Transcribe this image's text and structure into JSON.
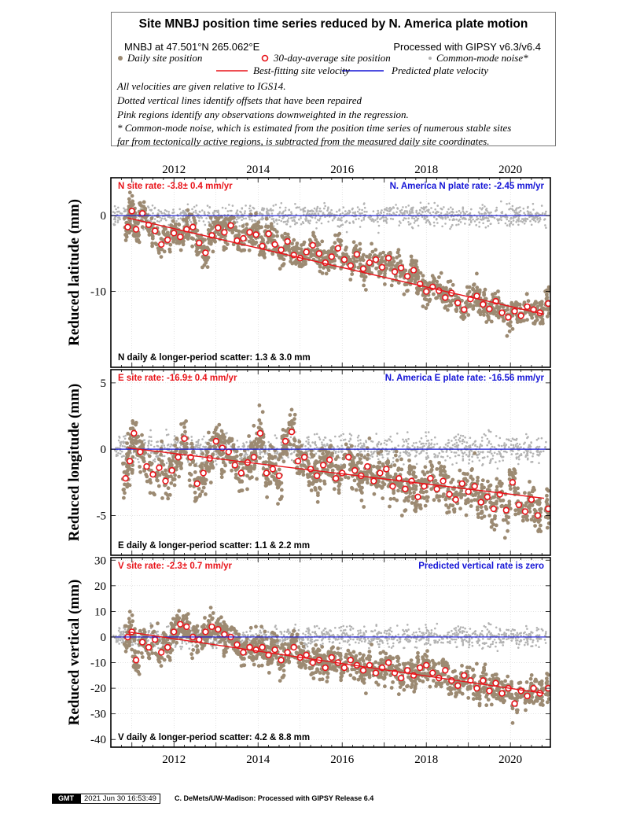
{
  "legend": {
    "title": "Site MNBJ position time series reduced by N. America plate motion",
    "site_info": "MNBJ at 47.501°N 265.062°E",
    "processed": "Processed with GIPSY v6.3/v6.4",
    "daily_label": "Daily site position",
    "avg_label": "30-day-average site position",
    "cm_label": "Common-mode noise*",
    "best_fit_label": "Best-fitting site velocity",
    "plate_label": "Predicted plate velocity",
    "notes": [
      "All velocities are given relative to IGS14.",
      "Dotted vertical lines identify offsets that have been repaired",
      "Pink regions identify any observations downweighted in the regression.",
      "* Common-mode noise, which is estimated from the position time series of numerous stable sites",
      "far from tectonically active regions, is subtracted from the measured daily site coordinates."
    ],
    "colors": {
      "daily": "#9c8a72",
      "avg": "#e8141a",
      "cm": "#b3b3b3",
      "best_fit": "#e8141a",
      "plate": "#1414d6"
    }
  },
  "footer": {
    "logo": "GMT",
    "timestamp": "2021 Jun 30 16:53:49",
    "credit": "C. DeMets/UW-Madison: Processed with GIPSY Release 6.4"
  },
  "chart_data": [
    {
      "type": "scatter",
      "component": "N",
      "ylabel": "Reduced latitude (mm)",
      "xlim": [
        2010.5,
        2020.95
      ],
      "ylim": [
        -20,
        5
      ],
      "x_ticks": [
        2012,
        2014,
        2016,
        2018,
        2020
      ],
      "y_ticks": [
        0,
        -10
      ],
      "grid": true,
      "site_rate_text": "N site rate:  -3.8± 0.4 mm/yr",
      "plate_rate_text": "N. America N plate rate: -2.45 mm/yr",
      "scatter_text": "N daily & longer-period scatter:   1.3 &   3.0 mm",
      "fit_line": {
        "x": [
          2010.9,
          2020.8
        ],
        "y": [
          -0.3,
          -13.0
        ]
      },
      "plate_line_y": 0,
      "daily_scatter_mm": 1.3,
      "common_mode_spread_mm": 1.0,
      "avg_points": [
        {
          "x": 2010.9,
          "y": -1.5
        },
        {
          "x": 2011.0,
          "y": 0.6
        },
        {
          "x": 2011.1,
          "y": -1.8
        },
        {
          "x": 2011.25,
          "y": 0.3
        },
        {
          "x": 2011.4,
          "y": -1.2
        },
        {
          "x": 2011.55,
          "y": -2.0
        },
        {
          "x": 2011.7,
          "y": -3.8
        },
        {
          "x": 2011.85,
          "y": -3.2
        },
        {
          "x": 2012.0,
          "y": -2.3
        },
        {
          "x": 2012.15,
          "y": -2.8
        },
        {
          "x": 2012.3,
          "y": -1.8
        },
        {
          "x": 2012.45,
          "y": -1.5
        },
        {
          "x": 2012.6,
          "y": -3.6
        },
        {
          "x": 2012.75,
          "y": -4.9
        },
        {
          "x": 2012.9,
          "y": -2.6
        },
        {
          "x": 2013.05,
          "y": -1.6
        },
        {
          "x": 2013.2,
          "y": -2.2
        },
        {
          "x": 2013.35,
          "y": -1.3
        },
        {
          "x": 2013.5,
          "y": -3.3
        },
        {
          "x": 2013.65,
          "y": -3.0
        },
        {
          "x": 2013.8,
          "y": -2.2
        },
        {
          "x": 2013.95,
          "y": -2.5
        },
        {
          "x": 2014.1,
          "y": -4.0
        },
        {
          "x": 2014.25,
          "y": -2.4
        },
        {
          "x": 2014.4,
          "y": -3.8
        },
        {
          "x": 2014.55,
          "y": -4.5
        },
        {
          "x": 2014.7,
          "y": -3.4
        },
        {
          "x": 2014.85,
          "y": -5.2
        },
        {
          "x": 2015.0,
          "y": -5.6
        },
        {
          "x": 2015.15,
          "y": -4.8
        },
        {
          "x": 2015.3,
          "y": -3.9
        },
        {
          "x": 2015.45,
          "y": -5.0
        },
        {
          "x": 2015.6,
          "y": -6.2
        },
        {
          "x": 2015.75,
          "y": -5.4
        },
        {
          "x": 2015.9,
          "y": -4.3
        },
        {
          "x": 2016.05,
          "y": -5.8
        },
        {
          "x": 2016.2,
          "y": -6.6
        },
        {
          "x": 2016.35,
          "y": -5.1
        },
        {
          "x": 2016.5,
          "y": -7.0
        },
        {
          "x": 2016.65,
          "y": -6.2
        },
        {
          "x": 2016.8,
          "y": -5.8
        },
        {
          "x": 2016.95,
          "y": -6.8
        },
        {
          "x": 2017.1,
          "y": -5.6
        },
        {
          "x": 2017.25,
          "y": -7.4
        },
        {
          "x": 2017.4,
          "y": -6.9
        },
        {
          "x": 2017.55,
          "y": -8.0
        },
        {
          "x": 2017.7,
          "y": -7.2
        },
        {
          "x": 2017.85,
          "y": -9.0
        },
        {
          "x": 2018.0,
          "y": -10.0
        },
        {
          "x": 2018.15,
          "y": -9.4
        },
        {
          "x": 2018.3,
          "y": -9.9
        },
        {
          "x": 2018.45,
          "y": -10.8
        },
        {
          "x": 2018.6,
          "y": -10.2
        },
        {
          "x": 2018.75,
          "y": -11.5
        },
        {
          "x": 2018.9,
          "y": -12.4
        },
        {
          "x": 2019.05,
          "y": -11.0
        },
        {
          "x": 2019.2,
          "y": -10.6
        },
        {
          "x": 2019.35,
          "y": -11.7
        },
        {
          "x": 2019.5,
          "y": -12.3
        },
        {
          "x": 2019.65,
          "y": -11.3
        },
        {
          "x": 2019.8,
          "y": -12.8
        },
        {
          "x": 2019.95,
          "y": -13.4
        },
        {
          "x": 2020.1,
          "y": -12.6
        },
        {
          "x": 2020.25,
          "y": -13.2
        },
        {
          "x": 2020.4,
          "y": -12.0
        },
        {
          "x": 2020.55,
          "y": -12.4
        },
        {
          "x": 2020.7,
          "y": -12.8
        },
        {
          "x": 2020.9,
          "y": -11.6
        }
      ]
    },
    {
      "type": "scatter",
      "component": "E",
      "ylabel": "Reduced longitude (mm)",
      "xlim": [
        2010.5,
        2020.95
      ],
      "ylim": [
        -8,
        6
      ],
      "x_ticks": [
        2012,
        2014,
        2016,
        2018,
        2020
      ],
      "y_ticks": [
        5,
        0,
        -5
      ],
      "grid": true,
      "site_rate_text": "E site rate: -16.9± 0.4 mm/yr",
      "plate_rate_text": "N. America E plate rate: -16.56 mm/yr",
      "scatter_text": "E daily & longer-period scatter:   1.1 &   2.2 mm",
      "fit_line": {
        "x": [
          2010.9,
          2020.8
        ],
        "y": [
          0.1,
          -3.7
        ]
      },
      "plate_line_y": 0,
      "daily_scatter_mm": 1.1,
      "common_mode_spread_mm": 0.8,
      "avg_points": [
        {
          "x": 2010.85,
          "y": -2.2
        },
        {
          "x": 2010.95,
          "y": -0.9
        },
        {
          "x": 2011.05,
          "y": 1.2
        },
        {
          "x": 2011.2,
          "y": -0.2
        },
        {
          "x": 2011.35,
          "y": -1.3
        },
        {
          "x": 2011.5,
          "y": -1.9
        },
        {
          "x": 2011.65,
          "y": -1.4
        },
        {
          "x": 2011.8,
          "y": -2.4
        },
        {
          "x": 2011.95,
          "y": -1.6
        },
        {
          "x": 2012.1,
          "y": -0.6
        },
        {
          "x": 2012.25,
          "y": 0.8
        },
        {
          "x": 2012.4,
          "y": -0.6
        },
        {
          "x": 2012.55,
          "y": -2.6
        },
        {
          "x": 2012.7,
          "y": -1.8
        },
        {
          "x": 2012.85,
          "y": -0.7
        },
        {
          "x": 2013.0,
          "y": 0.6
        },
        {
          "x": 2013.15,
          "y": 0.1
        },
        {
          "x": 2013.3,
          "y": -0.2
        },
        {
          "x": 2013.45,
          "y": -1.2
        },
        {
          "x": 2013.6,
          "y": -1.8
        },
        {
          "x": 2013.75,
          "y": -1.0
        },
        {
          "x": 2013.9,
          "y": -0.6
        },
        {
          "x": 2014.05,
          "y": 1.2
        },
        {
          "x": 2014.2,
          "y": -1.8
        },
        {
          "x": 2014.35,
          "y": -1.5
        },
        {
          "x": 2014.5,
          "y": -2.0
        },
        {
          "x": 2014.65,
          "y": 0.6
        },
        {
          "x": 2014.8,
          "y": 1.3
        },
        {
          "x": 2014.95,
          "y": -0.9
        },
        {
          "x": 2015.1,
          "y": -0.6
        },
        {
          "x": 2015.25,
          "y": -1.5
        },
        {
          "x": 2015.4,
          "y": -2.0
        },
        {
          "x": 2015.55,
          "y": -1.2
        },
        {
          "x": 2015.7,
          "y": -0.8
        },
        {
          "x": 2015.85,
          "y": -2.2
        },
        {
          "x": 2016.0,
          "y": -1.8
        },
        {
          "x": 2016.15,
          "y": -0.6
        },
        {
          "x": 2016.3,
          "y": -1.6
        },
        {
          "x": 2016.45,
          "y": -2.0
        },
        {
          "x": 2016.6,
          "y": -1.3
        },
        {
          "x": 2016.75,
          "y": -2.4
        },
        {
          "x": 2016.9,
          "y": -1.8
        },
        {
          "x": 2017.05,
          "y": -1.5
        },
        {
          "x": 2017.2,
          "y": -2.8
        },
        {
          "x": 2017.35,
          "y": -2.2
        },
        {
          "x": 2017.5,
          "y": -3.0
        },
        {
          "x": 2017.65,
          "y": -2.4
        },
        {
          "x": 2017.8,
          "y": -3.6
        },
        {
          "x": 2017.95,
          "y": -2.8
        },
        {
          "x": 2018.1,
          "y": -2.2
        },
        {
          "x": 2018.25,
          "y": -3.0
        },
        {
          "x": 2018.4,
          "y": -2.4
        },
        {
          "x": 2018.55,
          "y": -3.4
        },
        {
          "x": 2018.7,
          "y": -3.8
        },
        {
          "x": 2018.85,
          "y": -2.6
        },
        {
          "x": 2019.0,
          "y": -3.2
        },
        {
          "x": 2019.15,
          "y": -2.8
        },
        {
          "x": 2019.3,
          "y": -4.0
        },
        {
          "x": 2019.45,
          "y": -3.6
        },
        {
          "x": 2019.6,
          "y": -4.5
        },
        {
          "x": 2019.75,
          "y": -3.4
        },
        {
          "x": 2019.9,
          "y": -4.6
        },
        {
          "x": 2020.05,
          "y": -2.5
        },
        {
          "x": 2020.2,
          "y": -4.2
        },
        {
          "x": 2020.35,
          "y": -4.7
        },
        {
          "x": 2020.5,
          "y": -3.8
        },
        {
          "x": 2020.65,
          "y": -5.0
        },
        {
          "x": 2020.9,
          "y": -4.5
        }
      ]
    },
    {
      "type": "scatter",
      "component": "V",
      "ylabel": "Reduced vertical (mm)",
      "xlim": [
        2010.5,
        2020.95
      ],
      "ylim": [
        -43,
        31
      ],
      "x_ticks": [
        2012,
        2014,
        2016,
        2018,
        2020
      ],
      "y_ticks": [
        30,
        20,
        10,
        0,
        -10,
        -20,
        -30,
        -40
      ],
      "grid": true,
      "site_rate_text": "V site rate:  -2.3± 0.7 mm/yr",
      "plate_rate_text": "Predicted vertical rate is zero",
      "scatter_text": "V daily & longer-period scatter:   4.2 &   8.8 mm",
      "fit_line": {
        "x": [
          2010.9,
          2020.8
        ],
        "y": [
          2.0,
          -22.0
        ]
      },
      "plate_line_y": 0,
      "daily_scatter_mm": 4.2,
      "common_mode_spread_mm": 3.0,
      "avg_points": [
        {
          "x": 2010.9,
          "y": 0.0
        },
        {
          "x": 2011.0,
          "y": 2.0
        },
        {
          "x": 2011.1,
          "y": -9.0
        },
        {
          "x": 2011.25,
          "y": -2.0
        },
        {
          "x": 2011.4,
          "y": -4.0
        },
        {
          "x": 2011.55,
          "y": -1.0
        },
        {
          "x": 2011.7,
          "y": -6.0
        },
        {
          "x": 2011.85,
          "y": -4.0
        },
        {
          "x": 2012.0,
          "y": 2.0
        },
        {
          "x": 2012.15,
          "y": 5.0
        },
        {
          "x": 2012.3,
          "y": 4.0
        },
        {
          "x": 2012.45,
          "y": 0.0
        },
        {
          "x": 2012.6,
          "y": -1.0
        },
        {
          "x": 2012.75,
          "y": 2.0
        },
        {
          "x": 2012.9,
          "y": 4.0
        },
        {
          "x": 2013.05,
          "y": 3.0
        },
        {
          "x": 2013.2,
          "y": 1.0
        },
        {
          "x": 2013.35,
          "y": 0.0
        },
        {
          "x": 2013.5,
          "y": -3.0
        },
        {
          "x": 2013.65,
          "y": -6.0
        },
        {
          "x": 2013.8,
          "y": -4.0
        },
        {
          "x": 2013.95,
          "y": -5.0
        },
        {
          "x": 2014.1,
          "y": -4.0
        },
        {
          "x": 2014.25,
          "y": -7.0
        },
        {
          "x": 2014.4,
          "y": -5.0
        },
        {
          "x": 2014.55,
          "y": -9.0
        },
        {
          "x": 2014.7,
          "y": -6.0
        },
        {
          "x": 2014.85,
          "y": -4.0
        },
        {
          "x": 2015.0,
          "y": -8.0
        },
        {
          "x": 2015.15,
          "y": -7.0
        },
        {
          "x": 2015.3,
          "y": -10.0
        },
        {
          "x": 2015.45,
          "y": -9.0
        },
        {
          "x": 2015.6,
          "y": -12.0
        },
        {
          "x": 2015.75,
          "y": -8.0
        },
        {
          "x": 2015.9,
          "y": -10.0
        },
        {
          "x": 2016.05,
          "y": -12.0
        },
        {
          "x": 2016.2,
          "y": -9.0
        },
        {
          "x": 2016.35,
          "y": -11.0
        },
        {
          "x": 2016.5,
          "y": -13.0
        },
        {
          "x": 2016.65,
          "y": -11.0
        },
        {
          "x": 2016.8,
          "y": -14.0
        },
        {
          "x": 2016.95,
          "y": -12.0
        },
        {
          "x": 2017.1,
          "y": -10.0
        },
        {
          "x": 2017.25,
          "y": -14.0
        },
        {
          "x": 2017.4,
          "y": -16.0
        },
        {
          "x": 2017.55,
          "y": -13.0
        },
        {
          "x": 2017.7,
          "y": -15.0
        },
        {
          "x": 2017.85,
          "y": -12.0
        },
        {
          "x": 2018.0,
          "y": -11.0
        },
        {
          "x": 2018.15,
          "y": -14.0
        },
        {
          "x": 2018.3,
          "y": -16.0
        },
        {
          "x": 2018.45,
          "y": -13.0
        },
        {
          "x": 2018.6,
          "y": -17.0
        },
        {
          "x": 2018.75,
          "y": -19.0
        },
        {
          "x": 2018.9,
          "y": -15.0
        },
        {
          "x": 2019.05,
          "y": -17.0
        },
        {
          "x": 2019.2,
          "y": -20.0
        },
        {
          "x": 2019.35,
          "y": -17.0
        },
        {
          "x": 2019.5,
          "y": -21.0
        },
        {
          "x": 2019.65,
          "y": -18.0
        },
        {
          "x": 2019.8,
          "y": -22.0
        },
        {
          "x": 2019.95,
          "y": -20.0
        },
        {
          "x": 2020.1,
          "y": -26.0
        },
        {
          "x": 2020.25,
          "y": -21.0
        },
        {
          "x": 2020.4,
          "y": -23.0
        },
        {
          "x": 2020.55,
          "y": -20.0
        },
        {
          "x": 2020.7,
          "y": -22.0
        },
        {
          "x": 2020.9,
          "y": -20.0
        }
      ]
    }
  ]
}
